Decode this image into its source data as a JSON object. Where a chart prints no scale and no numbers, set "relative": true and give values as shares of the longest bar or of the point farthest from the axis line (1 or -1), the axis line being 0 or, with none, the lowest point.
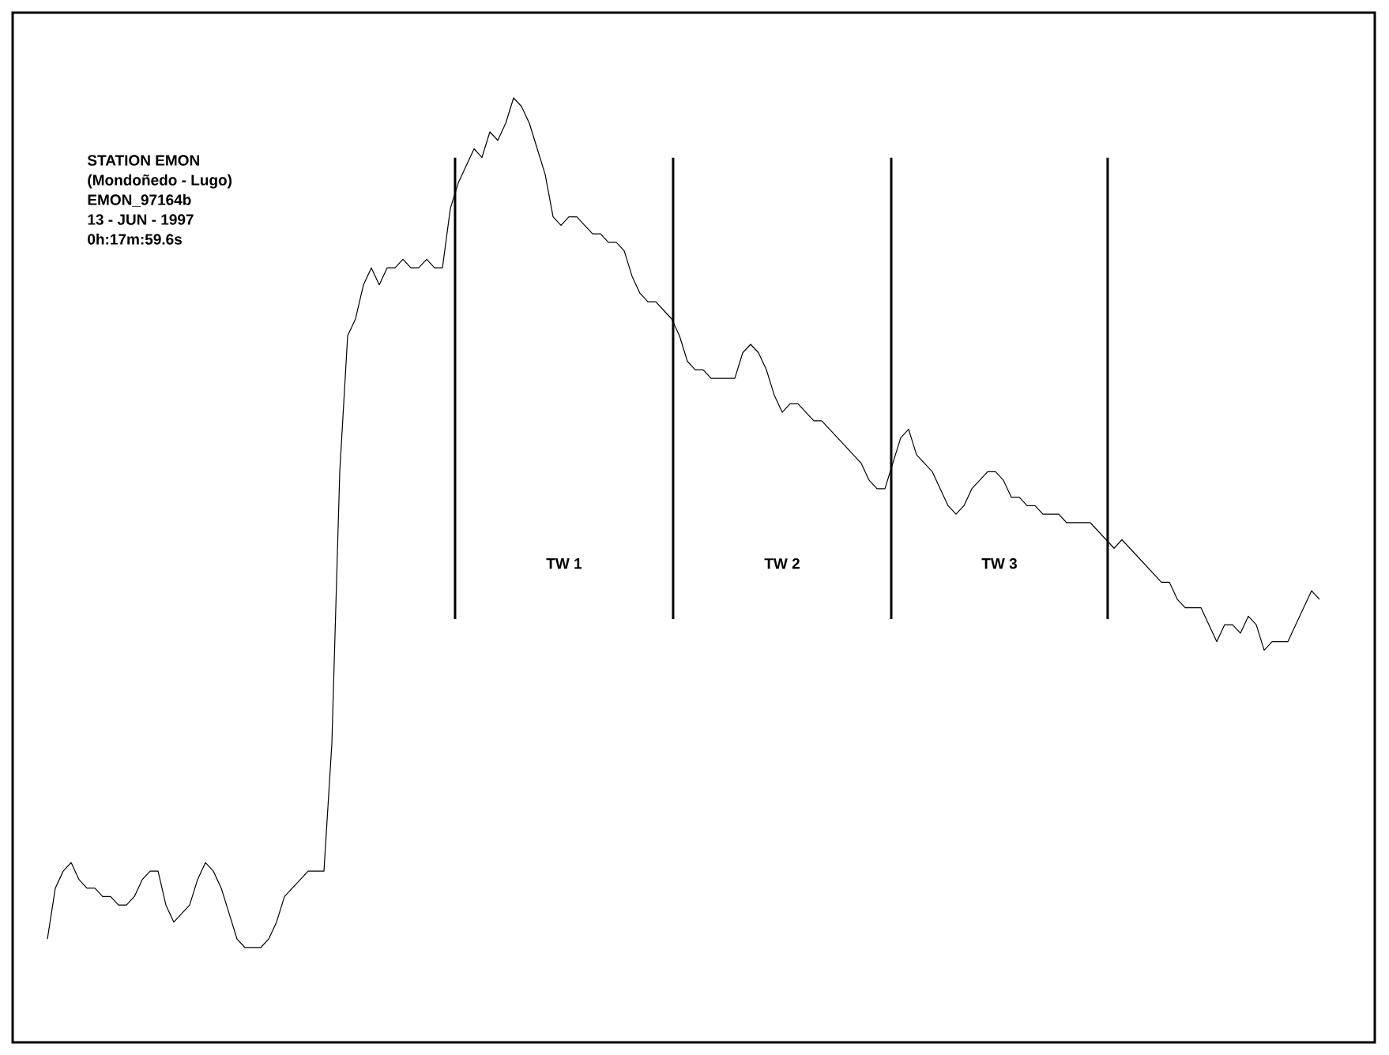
{
  "chart_data": {
    "type": "line",
    "relative": true,
    "marker": "none",
    "line_style": "solid",
    "categories": [
      null,
      null,
      null,
      null,
      null,
      null,
      null,
      null,
      null,
      null,
      null,
      null,
      null,
      null,
      null,
      null,
      null,
      null,
      null,
      null,
      null,
      null,
      null,
      null,
      null,
      null,
      null,
      null,
      null,
      null,
      null,
      null,
      null,
      null,
      null,
      null,
      null,
      null,
      null,
      null,
      null,
      null,
      null,
      null,
      null,
      null,
      null,
      null,
      null,
      null,
      null,
      null,
      null,
      null,
      null,
      null,
      null,
      null,
      null,
      null,
      null,
      null,
      null,
      null,
      null,
      null,
      null,
      null,
      null,
      null,
      null,
      null,
      null,
      null,
      null,
      null,
      null,
      null,
      null,
      null,
      null,
      null,
      null,
      null,
      null,
      null,
      null,
      null,
      null,
      null,
      null,
      null,
      null,
      null,
      null,
      null,
      null,
      null,
      null,
      null,
      null,
      null,
      null,
      null,
      null,
      null,
      null,
      null,
      null,
      null,
      null,
      null,
      null,
      null,
      null,
      null,
      null,
      null,
      null,
      null,
      null,
      null,
      null,
      null,
      null,
      null,
      null,
      null,
      null,
      null,
      null,
      null,
      null,
      null,
      null,
      null,
      null,
      null,
      null,
      null,
      null,
      null,
      null,
      null,
      null,
      null,
      null,
      null,
      null,
      null,
      null,
      null,
      null,
      null,
      null,
      null,
      null,
      null,
      null,
      null,
      null,
      null
    ],
    "series": [
      {
        "color": "#000000",
        "values": [
          0.01,
          0.07,
          0.09,
          0.1,
          0.08,
          0.07,
          0.07,
          0.06,
          0.06,
          0.05,
          0.05,
          0.06,
          0.08,
          0.09,
          0.09,
          0.05,
          0.03,
          0.04,
          0.05,
          0.08,
          0.1,
          0.09,
          0.07,
          0.04,
          0.01,
          0,
          0,
          0,
          0.01,
          0.03,
          0.06,
          0.07,
          0.08,
          0.09,
          0.09,
          0.09,
          0.24,
          0.56,
          0.72,
          0.74,
          0.78,
          0.8,
          0.78,
          0.8,
          0.8,
          0.81,
          0.8,
          0.8,
          0.81,
          0.8,
          0.8,
          0.87,
          0.9,
          0.92,
          0.94,
          0.93,
          0.96,
          0.95,
          0.97,
          1.0,
          0.99,
          0.97,
          0.94,
          0.91,
          0.86,
          0.85,
          0.86,
          0.86,
          0.85,
          0.84,
          0.84,
          0.83,
          0.83,
          0.82,
          0.79,
          0.77,
          0.76,
          0.76,
          0.75,
          0.74,
          0.72,
          0.69,
          0.68,
          0.68,
          0.67,
          0.67,
          0.67,
          0.67,
          0.7,
          0.71,
          0.7,
          0.68,
          0.65,
          0.63,
          0.64,
          0.64,
          0.63,
          0.62,
          0.62,
          0.61,
          0.6,
          0.59,
          0.58,
          0.57,
          0.55,
          0.54,
          0.54,
          0.57,
          0.6,
          0.61,
          0.58,
          0.57,
          0.56,
          0.54,
          0.52,
          0.51,
          0.52,
          0.54,
          0.55,
          0.56,
          0.56,
          0.55,
          0.53,
          0.53,
          0.52,
          0.52,
          0.51,
          0.51,
          0.51,
          0.5,
          0.5,
          0.5,
          0.5,
          0.49,
          0.48,
          0.47,
          0.48,
          0.47,
          0.46,
          0.45,
          0.44,
          0.43,
          0.43,
          0.41,
          0.4,
          0.4,
          0.4,
          0.38,
          0.36,
          0.38,
          0.38,
          0.37,
          0.39,
          0.38,
          0.35,
          0.36,
          0.36,
          0.36,
          0.38,
          0.4,
          0.42,
          0.41
        ]
      }
    ],
    "annotations": [
      "STATION EMON",
      "(Mondoñedo - Lugo)",
      "EMON_97164b",
      "13 - JUN - 1997",
      "0h:17m:59.6s",
      "TW 1",
      "TW 2",
      "TW 3"
    ]
  }
}
